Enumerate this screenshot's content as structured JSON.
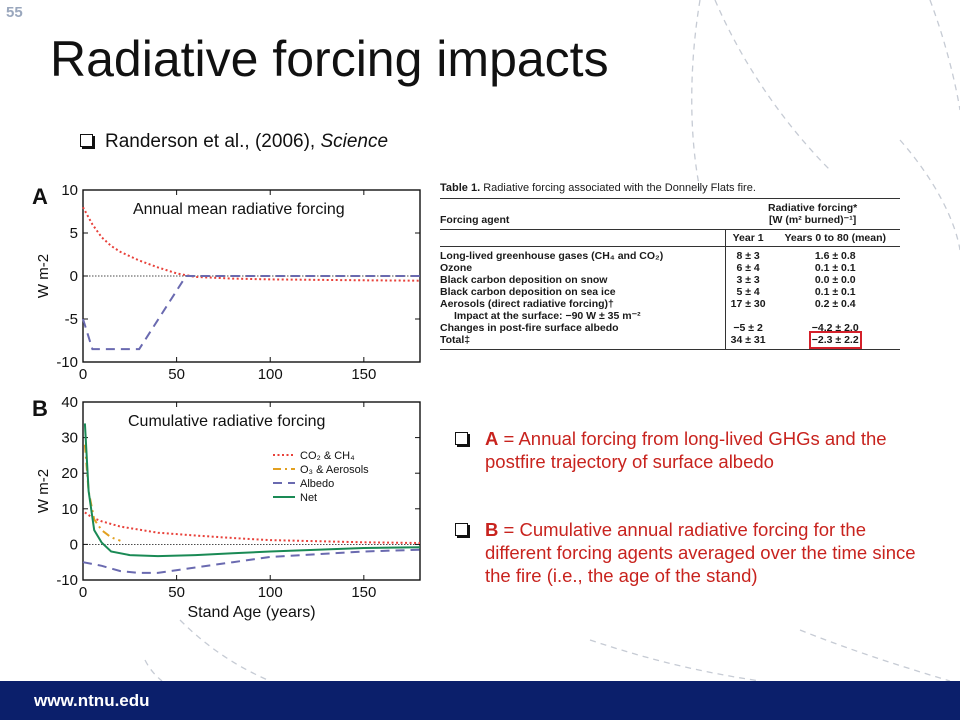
{
  "slide": {
    "number": "55",
    "title": "Radiative forcing impacts",
    "footer_url": "www.ntnu.edu"
  },
  "citation": {
    "text": "Randerson et al., (2006), ",
    "journal": "Science"
  },
  "chart_data": [
    {
      "type": "line",
      "panel": "A",
      "title": "Annual mean radiative forcing",
      "ylabel": "W m-2",
      "xlabel": "",
      "xlim": [
        0,
        180
      ],
      "ylim": [
        -10,
        10
      ],
      "xticks": [
        "0",
        "50",
        "100",
        "150"
      ],
      "yticks": [
        "10",
        "5",
        "0",
        "-5",
        "-10"
      ],
      "grid": false,
      "series": [
        {
          "color": "#e8413a",
          "style": "dotted",
          "x": [
            0,
            5,
            10,
            15,
            20,
            30,
            40,
            50,
            60,
            80,
            100,
            150,
            180
          ],
          "y": [
            8,
            6,
            4.5,
            3.5,
            2.8,
            1.8,
            1.0,
            0.3,
            -0.1,
            -0.3,
            -0.4,
            -0.5,
            -0.55
          ]
        },
        {
          "color": "#6a6ab0",
          "style": "dashed",
          "x": [
            0,
            5,
            10,
            30,
            55,
            60,
            100,
            150,
            180
          ],
          "y": [
            -5,
            -8.5,
            -8.5,
            -8.5,
            0,
            0,
            0,
            0,
            0
          ]
        }
      ]
    },
    {
      "type": "line",
      "panel": "B",
      "title": "Cumulative radiative forcing",
      "ylabel": "W m-2",
      "xlabel": "Stand Age (years)",
      "xlim": [
        0,
        180
      ],
      "ylim": [
        -10,
        40
      ],
      "xticks": [
        "0",
        "50",
        "100",
        "150"
      ],
      "yticks": [
        "40",
        "30",
        "20",
        "10",
        "0",
        "-10"
      ],
      "grid": false,
      "legend_position": "right",
      "series": [
        {
          "name": "CO₂ & CH₄",
          "color": "#e8413a",
          "style": "dotted",
          "x": [
            1,
            5,
            10,
            20,
            40,
            60,
            80,
            100,
            150,
            180
          ],
          "y": [
            9,
            7.5,
            6.5,
            5,
            3.3,
            2.5,
            1.8,
            1.2,
            0.6,
            0.4
          ]
        },
        {
          "name": "O₃ & Aerosols",
          "color": "#e2a020",
          "style": "dashdot",
          "x": [
            1,
            3,
            6,
            10,
            15,
            20
          ],
          "y": [
            28,
            15,
            7,
            4,
            2,
            1
          ]
        },
        {
          "name": "Albedo",
          "color": "#6a6ab0",
          "style": "dashed",
          "x": [
            0,
            10,
            20,
            30,
            40,
            60,
            80,
            100,
            150,
            180
          ],
          "y": [
            -5,
            -6,
            -7.5,
            -8,
            -8,
            -6.5,
            -5,
            -3.5,
            -2,
            -1.5
          ]
        },
        {
          "name": "Net",
          "color": "#1a8a55",
          "style": "solid",
          "x": [
            1,
            3,
            6,
            10,
            15,
            25,
            40,
            60,
            80,
            100,
            150,
            180
          ],
          "y": [
            34,
            15,
            4,
            0.5,
            -2,
            -3,
            -3.3,
            -3,
            -2.5,
            -2,
            -1,
            -0.8
          ]
        }
      ]
    }
  ],
  "table": {
    "caption_label": "Table 1.",
    "caption_text": " Radiative forcing associated with the Donnelly Flats fire.",
    "header_group": "Radiative forcing*",
    "header_units": "[W (m² burned)⁻¹]",
    "col_agent": "Forcing agent",
    "col_year1": "Year 1",
    "col_years": "Years 0 to 80 (mean)",
    "rows": [
      {
        "agent": "Long-lived greenhouse gases (CH₄ and CO₂)",
        "y1": "8 ± 3",
        "y80": "1.6 ± 0.8"
      },
      {
        "agent": "Ozone",
        "y1": "6 ± 4",
        "y80": "0.1 ± 0.1"
      },
      {
        "agent": "Black carbon deposition on snow",
        "y1": "3 ± 3",
        "y80": "0.0 ± 0.0"
      },
      {
        "agent": "Black carbon deposition on sea ice",
        "y1": "5 ± 4",
        "y80": "0.1 ± 0.1"
      },
      {
        "agent": "Aerosols (direct radiative forcing)†",
        "y1": "17 ± 30",
        "y80": "0.2 ± 0.4"
      },
      {
        "agent": "Impact at the surface: −90 W ± 35 m⁻²",
        "y1": "",
        "y80": ""
      },
      {
        "agent": "Changes in post-fire surface albedo",
        "y1": "−5 ± 2",
        "y80": "−4.2 ± 2.0"
      },
      {
        "agent": "Total‡",
        "y1": "34 ± 31",
        "y80": "−2.3 ± 2.2"
      }
    ]
  },
  "notes": [
    {
      "key": "A",
      "text": " = Annual forcing from long-lived GHGs and the postfire trajectory of surface albedo"
    },
    {
      "key": "B",
      "text": " = Cumulative annual radiative forcing for the different forcing agents averaged over the time since the fire (i.e., the age of the stand)"
    }
  ]
}
